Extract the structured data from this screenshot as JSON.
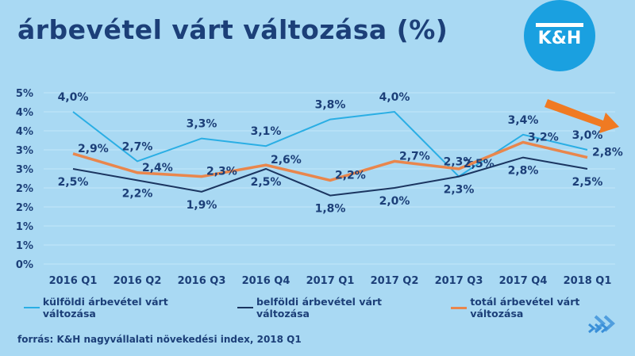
{
  "title": "árbevétel várt változása (%)",
  "logo": "K&H",
  "source": "forrás: K&H nagyvállalati növekedési index, 2018 Q1",
  "colors": {
    "kulfoldi": "#2aaee4",
    "belfoldi": "#1b3560",
    "total": "#e9864c",
    "arrow": "#f07a22",
    "background": "#a9d9f3"
  },
  "chart_data": {
    "type": "line",
    "categories": [
      "2016 Q1",
      "2016 Q2",
      "2016 Q3",
      "2016 Q4",
      "2017 Q1",
      "2017 Q2",
      "2017 Q3",
      "2017 Q4",
      "2018 Q1"
    ],
    "ylim": [
      0,
      4.5
    ],
    "yticks": [
      0,
      0.5,
      1,
      1.5,
      2,
      2.5,
      3,
      3.5,
      4,
      4.5
    ],
    "ytick_labels": [
      "0%",
      "1%",
      "1%",
      "2%",
      "2%",
      "3%",
      "3%",
      "4%",
      "4%",
      "5%"
    ],
    "grid": true,
    "legend": "bottom",
    "series": [
      {
        "name": "külföldi árbevétel várt változása",
        "key": "kulfoldi",
        "values": [
          4.0,
          2.7,
          3.3,
          3.1,
          3.8,
          4.0,
          2.3,
          3.4,
          3.0
        ],
        "labels": [
          "4,0%",
          "2,7%",
          "3,3%",
          "3,1%",
          "3,8%",
          "4,0%",
          "2,3%",
          "3,4%",
          "3,0%"
        ]
      },
      {
        "name": "belföldi árbevétel várt változása",
        "key": "belfoldi",
        "values": [
          2.5,
          2.2,
          1.9,
          2.5,
          1.8,
          2.0,
          2.3,
          2.8,
          2.5
        ],
        "labels": [
          "2,5%",
          "2,2%",
          "1,9%",
          "2,5%",
          "1,8%",
          "2,0%",
          "2,3%",
          "2,8%",
          "2,5%"
        ]
      },
      {
        "name": "totál árbevétel várt változása",
        "key": "total",
        "values": [
          2.9,
          2.4,
          2.3,
          2.6,
          2.2,
          2.7,
          2.5,
          3.2,
          2.8
        ],
        "labels": [
          "2,9%",
          "2,4%",
          "2,3%",
          "2,6%",
          "2,2%",
          "2,7%",
          "2,5%",
          "3,2%",
          "2,8%"
        ]
      }
    ]
  }
}
